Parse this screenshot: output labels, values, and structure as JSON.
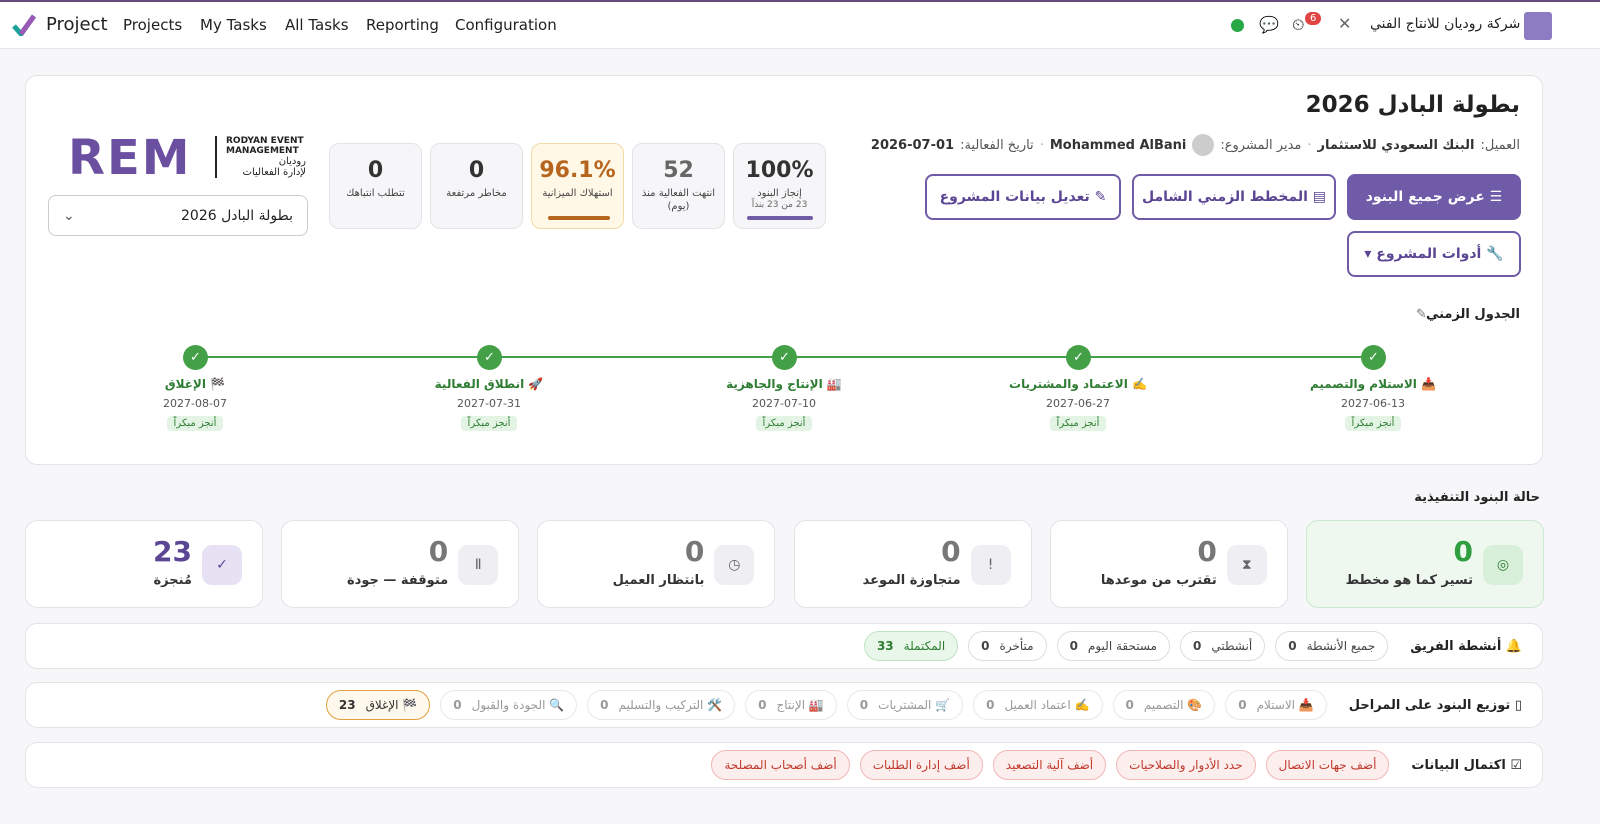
{
  "navbar": {
    "app": "Project",
    "menu": [
      "Projects",
      "My Tasks",
      "All Tasks",
      "Reporting",
      "Configuration"
    ],
    "company": "شركة روديان للانتاج الفني",
    "notifications": "6"
  },
  "header": {
    "title": "بطولة البادل 2026",
    "client_label": "العميل:",
    "client": "البنك السعودي للاستثمار",
    "manager_label": "مدير المشروع:",
    "manager": "Mohammed AlBani",
    "date_label": "تاريخ الفعالية:",
    "date": "2026-07-01",
    "buttons": [
      "عرض جميع البنود",
      "المخطط الزمني الشامل",
      "تعديل بيانات المشروع",
      "أدوات المشروع"
    ]
  },
  "kpis": [
    {
      "value": "100%",
      "label": "إنجاز البنود",
      "sub": "23 من 23 بنداً"
    },
    {
      "value": "52",
      "label": "انتهت الفعالية منذ (يوم)"
    },
    {
      "value": "96.1%",
      "label": "استهلاك الميزانية"
    },
    {
      "value": "0",
      "label": "مخاطر مرتفعة"
    },
    {
      "value": "0",
      "label": "تتطلب انتباهك"
    }
  ],
  "logo": {
    "mark": "REM",
    "en": "RODYAN EVENT MANAGEMENT",
    "ar1": "روديان",
    "ar2": "لإدارة الفعاليات"
  },
  "selector": "بطولة البادل 2026",
  "timeline": {
    "title": "الجدول الزمني",
    "milestones": [
      {
        "label": "📥 الاستلام والتصميم",
        "date": "2027-06-13",
        "status": "أنجز مبكراً"
      },
      {
        "label": "✍️ الاعتماد والمشتريات",
        "date": "2027-06-27",
        "status": "أنجز مبكراً"
      },
      {
        "label": "🏭 الإنتاج والجاهزية",
        "date": "2027-07-10",
        "status": "أنجز مبكراً"
      },
      {
        "label": "🚀 انطلاق الفعالية",
        "date": "2027-07-31",
        "status": "أنجز مبكراً"
      },
      {
        "label": "🏁 الإغلاق",
        "date": "2027-08-07",
        "status": "أنجز مبكراً"
      }
    ]
  },
  "status": {
    "title": "حالة البنود التنفيذية",
    "cards": [
      {
        "value": 0,
        "label": "تسير كما هو مخطط"
      },
      {
        "value": 0,
        "label": "تقترب من موعدها"
      },
      {
        "value": 0,
        "label": "متجاوزة الموعد"
      },
      {
        "value": 0,
        "label": "بانتظار العميل"
      },
      {
        "value": 0,
        "label": "متوقفة — جودة"
      },
      {
        "value": 23,
        "label": "مُنجزة"
      }
    ]
  },
  "team": {
    "title": "أنشطة الفريق",
    "filters": [
      {
        "label": "جميع الأنشطة",
        "count": 0
      },
      {
        "label": "أنشطتي",
        "count": 0
      },
      {
        "label": "مستحقة اليوم",
        "count": 0
      },
      {
        "label": "متأخرة",
        "count": 0
      },
      {
        "label": "المكتملة",
        "count": 33
      }
    ]
  },
  "stages": {
    "title": "توزيع البنود على المراحل",
    "items": [
      {
        "label": "📥 الاستلام",
        "count": 0
      },
      {
        "label": "🎨 التصميم",
        "count": 0
      },
      {
        "label": "✍️ اعتماد العميل",
        "count": 0
      },
      {
        "label": "🛒 المشتريات",
        "count": 0
      },
      {
        "label": "🏭 الإنتاج",
        "count": 0
      },
      {
        "label": "🛠️ التركيب والتسليم",
        "count": 0
      },
      {
        "label": "🔍 الجودة والقبول",
        "count": 0
      },
      {
        "label": "🏁 الإغلاق",
        "count": 23
      }
    ]
  },
  "completeness": {
    "title": "اكتمال البيانات",
    "items": [
      "أضف جهات الاتصال",
      "حدد الأدوار والصلاحيات",
      "أضف آلية التصعيد",
      "أضف إدارة الطلبات",
      "أضف أصحاب المصلحة"
    ]
  }
}
